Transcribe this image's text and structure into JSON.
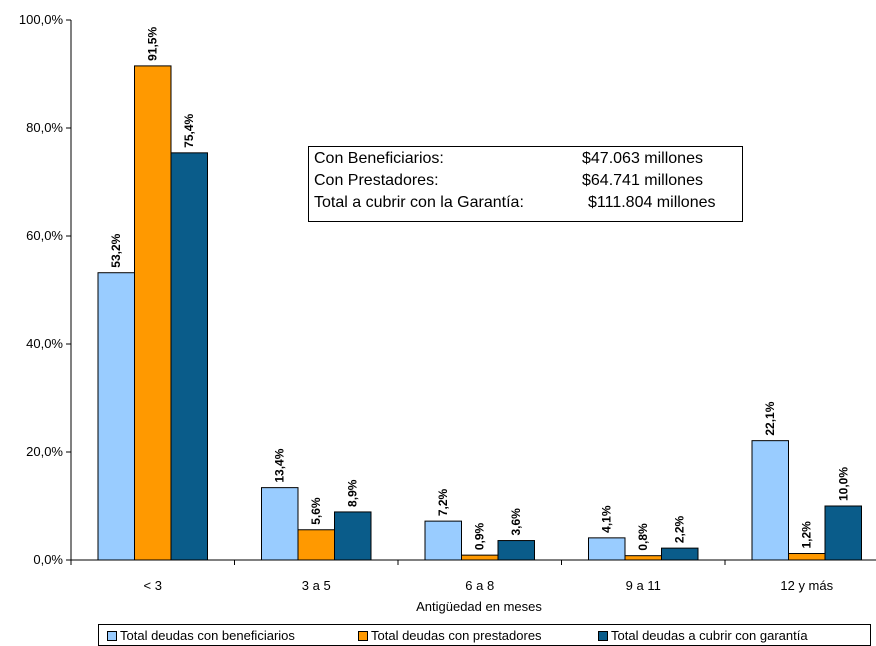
{
  "chart_data": {
    "type": "bar",
    "xlabel": "Antigüedad en meses",
    "ylabel": "",
    "ylim": [
      0,
      100
    ],
    "yticks": [
      "0,0%",
      "20,0%",
      "40,0%",
      "60,0%",
      "80,0%",
      "100,0%"
    ],
    "categories": [
      "< 3",
      "3 a 5",
      "6 a 8",
      "9 a 11",
      "12 y más"
    ],
    "series": [
      {
        "name": "Total deudas con beneficiarios",
        "color": "#99ccff",
        "values": [
          53.2,
          13.4,
          7.2,
          4.1,
          22.1
        ],
        "labels": [
          "53,2%",
          "13,4%",
          "7,2%",
          "4,1%",
          "22,1%"
        ]
      },
      {
        "name": "Total deudas con prestadores",
        "color": "#ff9900",
        "values": [
          91.5,
          5.6,
          0.9,
          0.8,
          1.2
        ],
        "labels": [
          "91,5%",
          "5,6%",
          "0,9%",
          "0,8%",
          "1,2%"
        ]
      },
      {
        "name": "Total deudas a cubrir con garantía",
        "color": "#0a5c8a",
        "values": [
          75.4,
          8.9,
          3.6,
          2.2,
          10.0
        ],
        "labels": [
          "75,4%",
          "8,9%",
          "3,6%",
          "2,2%",
          "10,0%"
        ]
      }
    ],
    "grid": false,
    "legend": "bottom",
    "annotation": [
      {
        "label": "Con Beneficiarios:",
        "value": "$47.063 millones"
      },
      {
        "label": "Con Prestadores:",
        "value": "$64.741 millones"
      },
      {
        "label": "Total a cubrir con la Garantía:",
        "value": "$111.804 millones"
      }
    ]
  }
}
